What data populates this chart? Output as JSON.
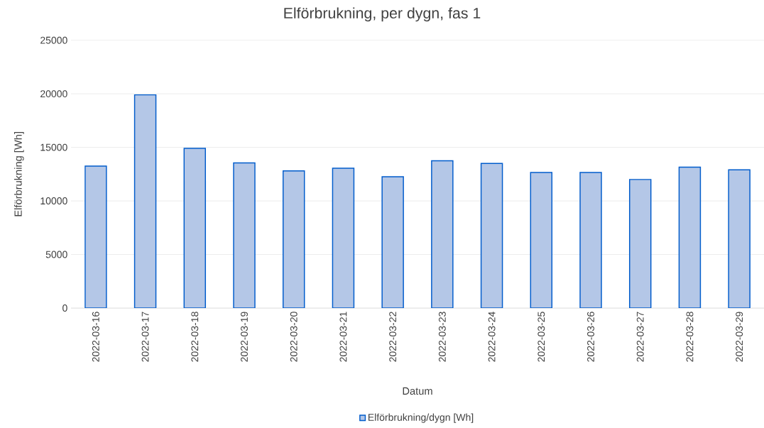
{
  "chart_data": {
    "type": "bar",
    "title": "Elförbrukning, per dygn, fas 1",
    "xlabel": "Datum",
    "ylabel": "Elförbrukning [Wh]",
    "categories": [
      "2022-03-16",
      "2022-03-17",
      "2022-03-18",
      "2022-03-19",
      "2022-03-20",
      "2022-03-21",
      "2022-03-22",
      "2022-03-23",
      "2022-03-24",
      "2022-03-25",
      "2022-03-26",
      "2022-03-27",
      "2022-03-28",
      "2022-03-29"
    ],
    "series": [
      {
        "name": "Elförbrukning/dygn [Wh]",
        "color": "#b4c7e7",
        "values": [
          13250,
          19900,
          14900,
          13550,
          12800,
          13050,
          12250,
          13750,
          13500,
          12650,
          12650,
          12000,
          13150,
          12900
        ]
      }
    ],
    "ylim": [
      0,
      25000
    ],
    "yticks": [
      0,
      5000,
      10000,
      15000,
      20000,
      25000
    ],
    "grid": "y",
    "legend": "bottom"
  }
}
